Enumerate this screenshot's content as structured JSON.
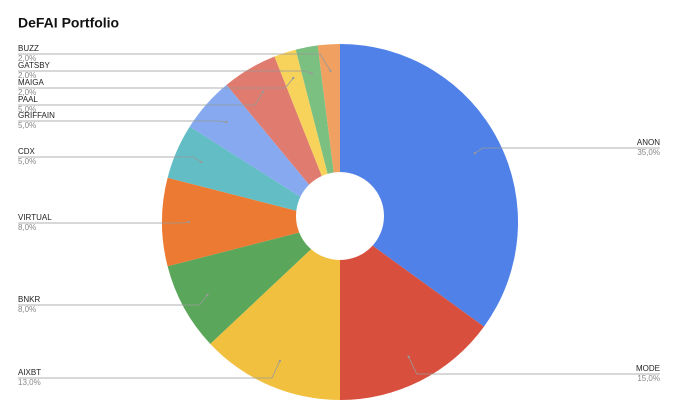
{
  "chart_data": {
    "type": "pie",
    "title": "DeFAI Portfolio",
    "categories": [
      "ANON",
      "MODE",
      "AIXBT",
      "BNKR",
      "VIRTUAL",
      "CDX",
      "GRIFFAIN",
      "PAAL",
      "MAIGA",
      "GATSBY",
      "BUZZ"
    ],
    "values": [
      35,
      15,
      13,
      8,
      8,
      5,
      5,
      5,
      2,
      2,
      2
    ],
    "value_labels": [
      "35,0%",
      "15,0%",
      "13,0%",
      "8,0%",
      "8,0%",
      "5,0%",
      "5,0%",
      "5,0%",
      "2,0%",
      "2,0%",
      "2,0%"
    ],
    "colors": [
      "#4f81e8",
      "#d94f3d",
      "#f1c03f",
      "#5aa65a",
      "#ec7a32",
      "#63bdc5",
      "#86a9f0",
      "#e07b6f",
      "#f7d35c",
      "#7bbf81",
      "#f0a060"
    ]
  }
}
